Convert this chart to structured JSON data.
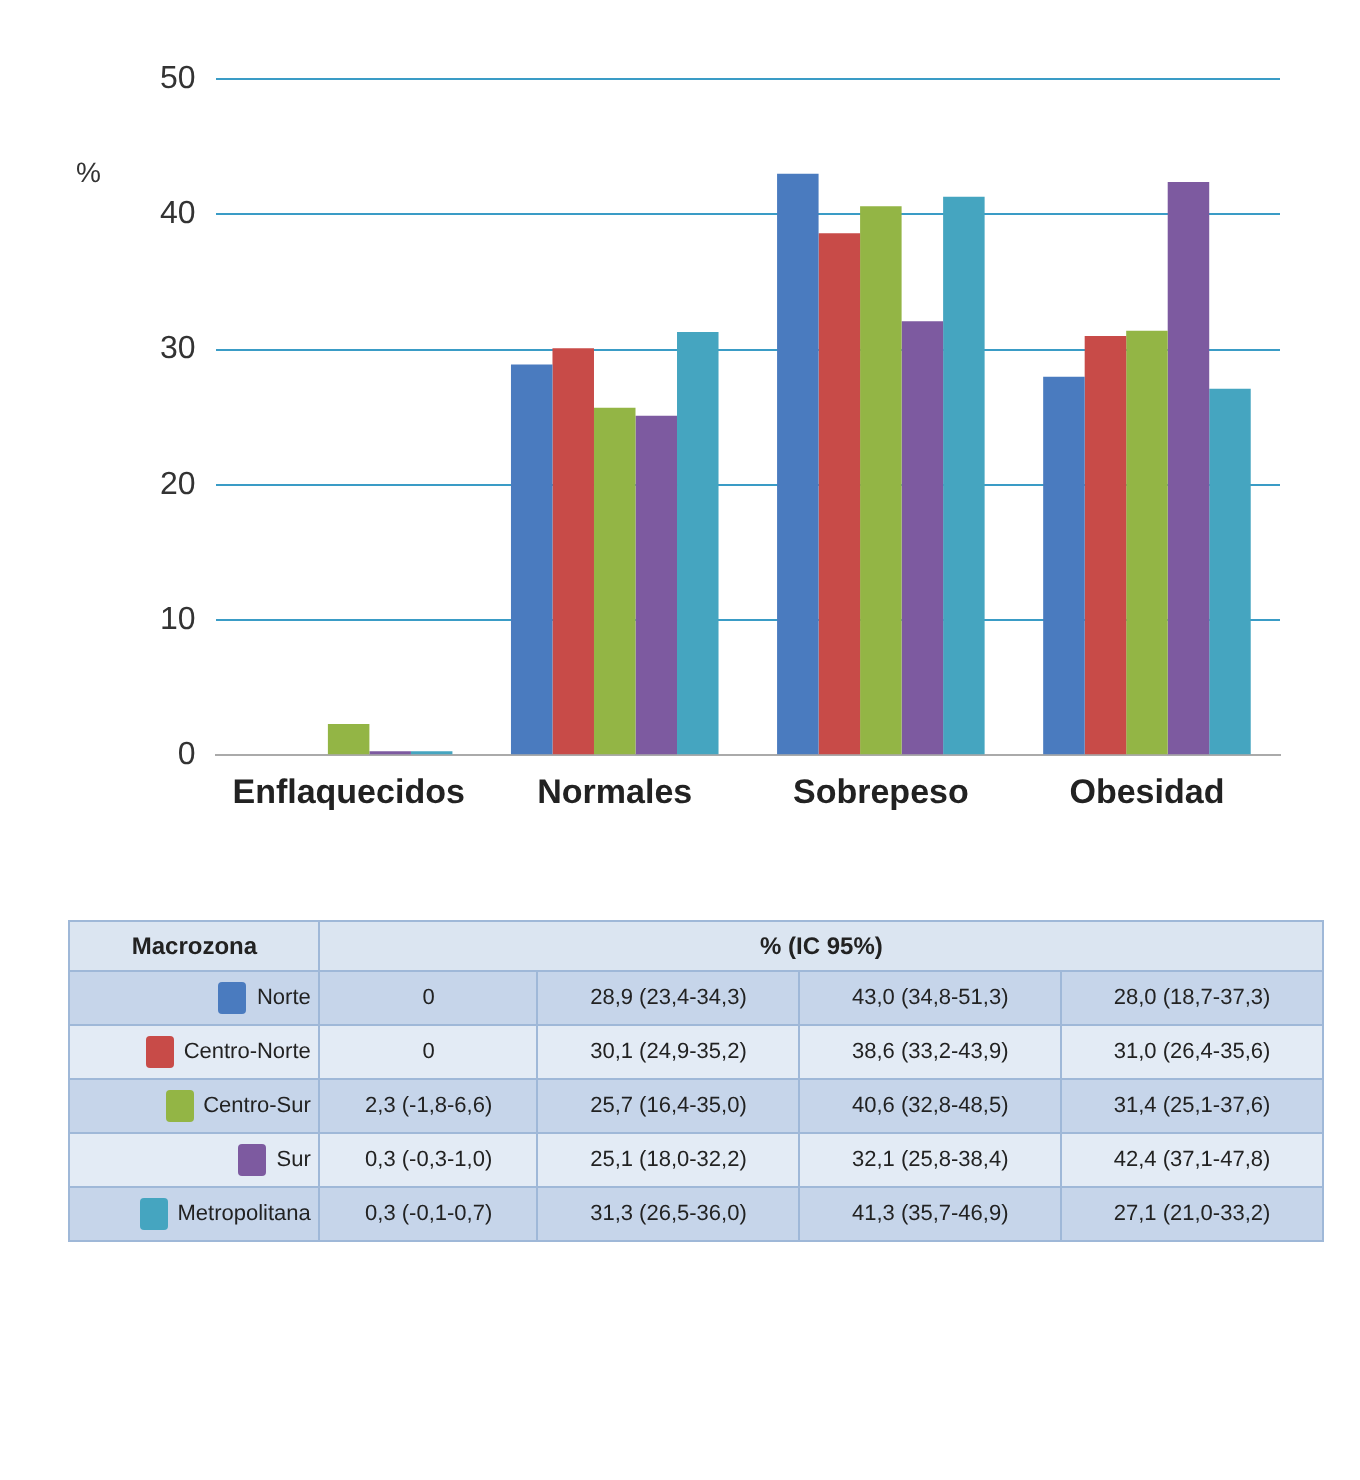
{
  "chart_data": {
    "type": "bar",
    "ylabel": "%",
    "legend_title": "Macrozona",
    "annotations": [
      "% (IC 95%)"
    ],
    "categories": [
      "Enflaquecidos",
      "Normales",
      "Sobrepeso",
      "Obesidad"
    ],
    "ylim": [
      0,
      50
    ],
    "yticks": [
      0,
      10,
      20,
      30,
      40,
      50
    ],
    "grid": "y",
    "legend": "bottom",
    "series": [
      {
        "name": "Norte",
        "color": "#4a7bbf",
        "values": [
          0,
          28.9,
          43.0,
          28.0
        ],
        "value_labels": [
          "0",
          "28,9 (23,4-34,3)",
          "43,0 (34,8-51,3)",
          "28,0 (18,7-37,3)"
        ]
      },
      {
        "name": "Centro-Norte",
        "color": "#c84b48",
        "values": [
          0,
          30.1,
          38.6,
          31.0
        ],
        "value_labels": [
          "0",
          "30,1 (24,9-35,2)",
          "38,6 (33,2-43,9)",
          "31,0 (26,4-35,6)"
        ]
      },
      {
        "name": "Centro-Sur",
        "color": "#93b545",
        "values": [
          2.3,
          25.7,
          40.6,
          31.4
        ],
        "value_labels": [
          "2,3 (-1,8-6,6)",
          "25,7 (16,4-35,0)",
          "40,6 (32,8-48,5)",
          "31,4 (25,1-37,6)"
        ]
      },
      {
        "name": "Sur",
        "color": "#7d5aa0",
        "values": [
          0.3,
          25.1,
          32.1,
          42.4
        ],
        "value_labels": [
          "0,3 (-0,3-1,0)",
          "25,1 (18,0-32,2)",
          "32,1 (25,8-38,4)",
          "42,4 (37,1-47,8)"
        ]
      },
      {
        "name": "Metropolitana",
        "color": "#45a5c0",
        "values": [
          0.3,
          31.3,
          41.3,
          27.1
        ],
        "value_labels": [
          "0,3 (-0,1-0,7)",
          "31,3 (26,5-36,0)",
          "41,3 (35,7-46,9)",
          "27,1 (21,0-33,2)"
        ]
      }
    ]
  }
}
